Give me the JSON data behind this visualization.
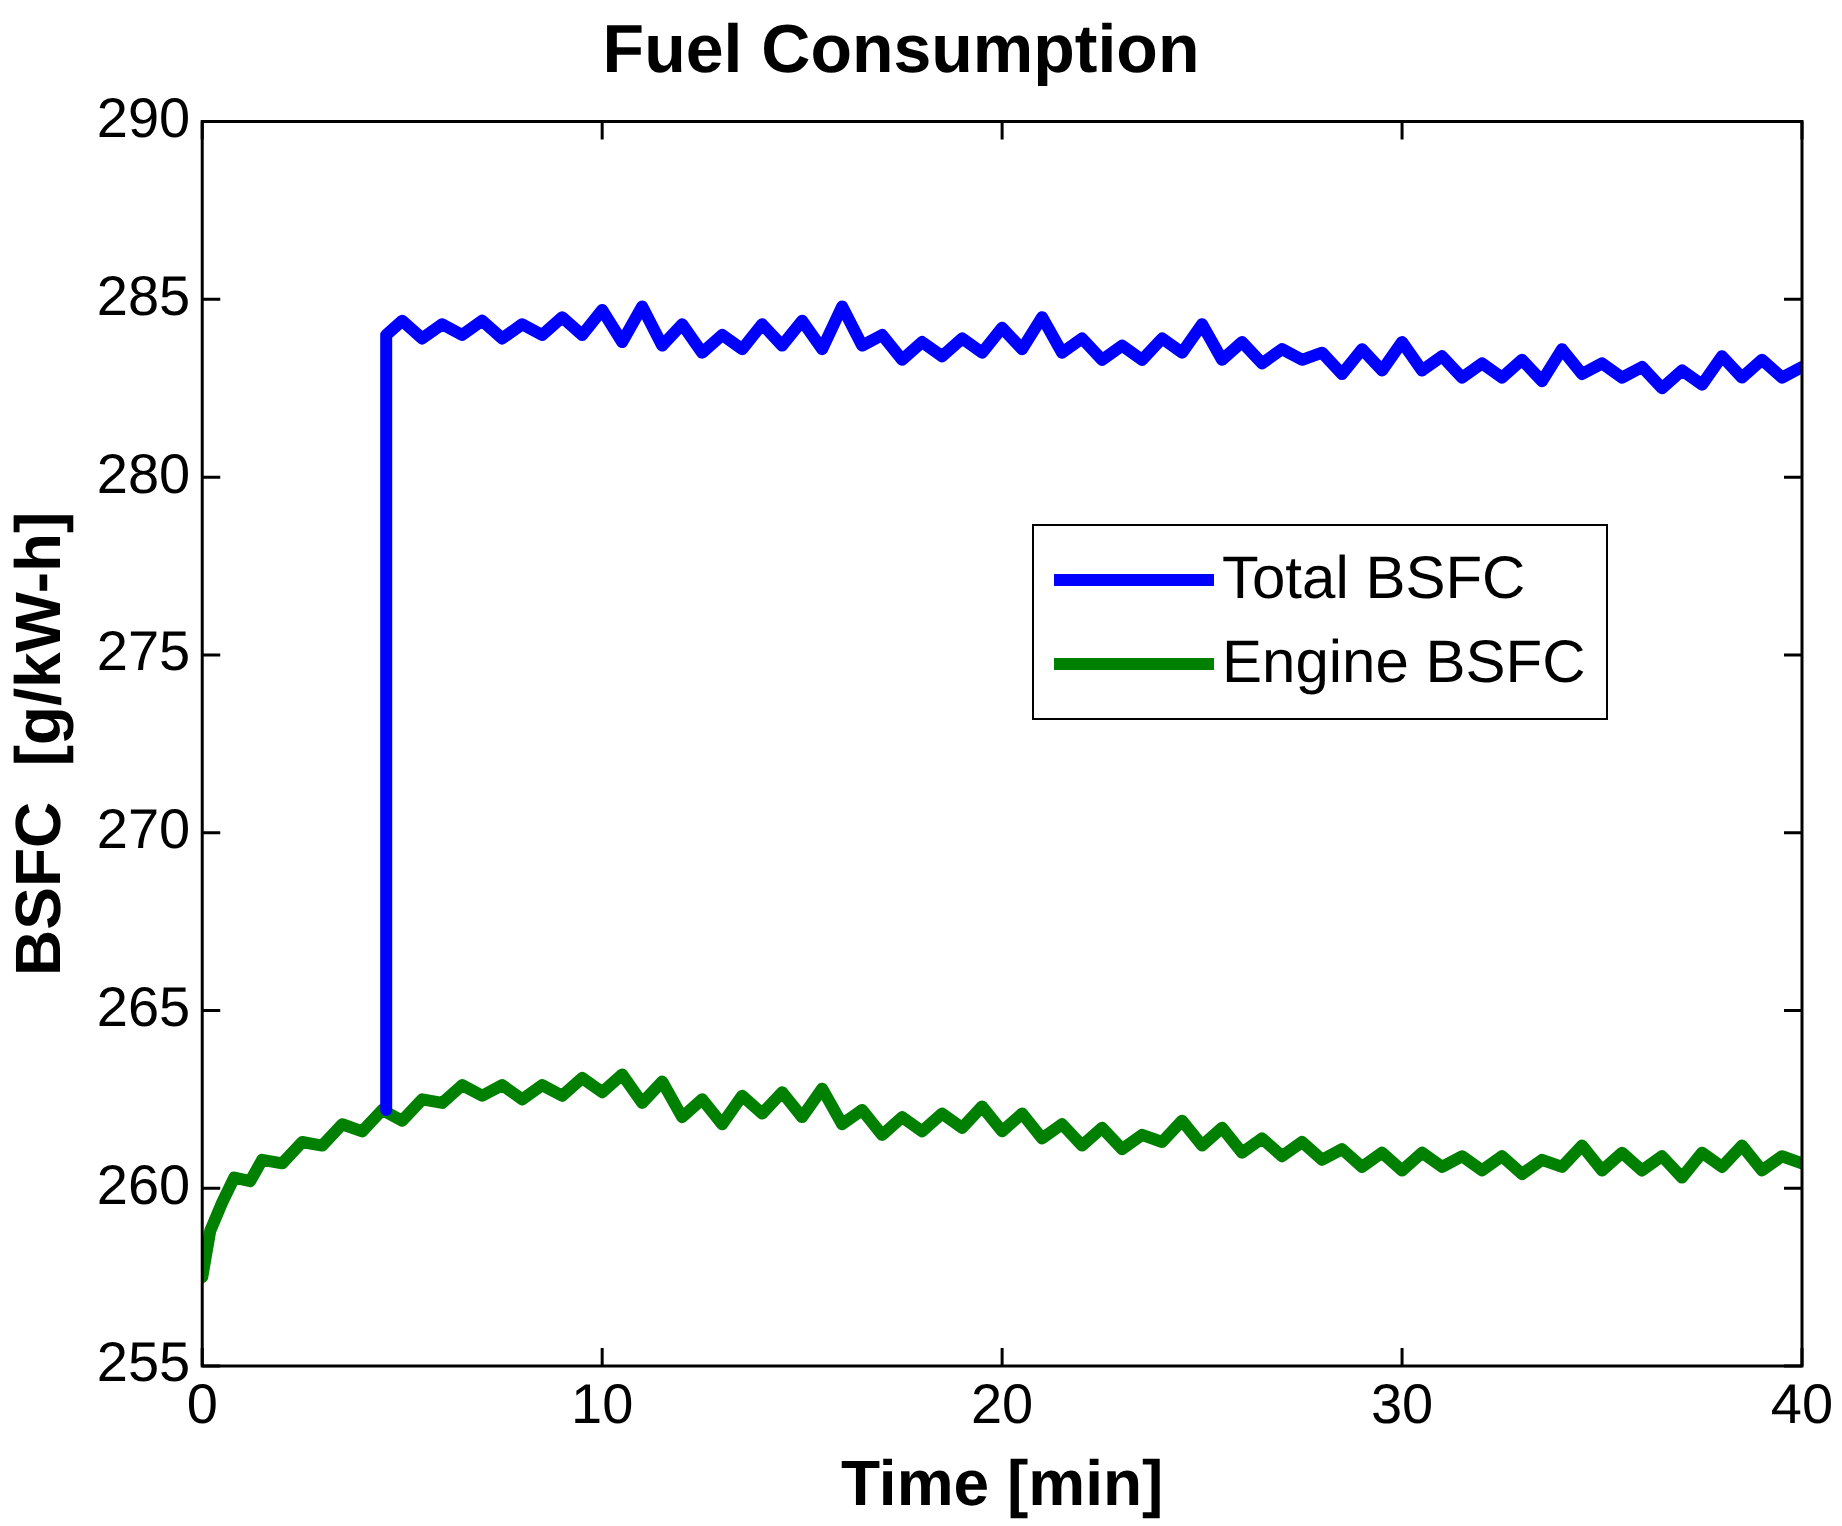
{
  "chart_data": {
    "type": "line",
    "title": "Fuel Consumption",
    "xlabel": "Time [min]",
    "ylabel": "BSFC  [g/kW-h]",
    "xlim": [
      0,
      40
    ],
    "ylim": [
      255,
      290
    ],
    "xticks": [
      0,
      10,
      20,
      30,
      40
    ],
    "yticks": [
      255,
      260,
      265,
      270,
      275,
      280,
      285,
      290
    ],
    "legend": "right",
    "series": [
      {
        "name": "Total BSFC",
        "color": "#0000ff",
        "x": [
          4.6,
          4.6,
          5,
          5.5,
          6,
          6.5,
          7,
          7.5,
          8,
          8.5,
          9,
          9.5,
          10,
          10.5,
          11,
          11.5,
          12,
          12.5,
          13,
          13.5,
          14,
          14.5,
          15,
          15.5,
          16,
          16.5,
          17,
          17.5,
          18,
          18.5,
          19,
          19.5,
          20,
          20.5,
          21,
          21.5,
          22,
          22.5,
          23,
          23.5,
          24,
          24.5,
          25,
          25.5,
          26,
          26.5,
          27,
          27.5,
          28,
          28.5,
          29,
          29.5,
          30,
          30.5,
          31,
          31.5,
          32,
          32.5,
          33,
          33.5,
          34,
          34.5,
          35,
          35.5,
          36,
          36.5,
          37,
          37.5,
          38,
          38.5,
          39,
          39.5,
          40
        ],
        "values": [
          262.2,
          284.0,
          284.4,
          283.9,
          284.3,
          284.0,
          284.4,
          283.9,
          284.3,
          284.0,
          284.5,
          284.0,
          284.7,
          283.8,
          284.8,
          283.7,
          284.3,
          283.5,
          284.0,
          283.6,
          284.3,
          283.7,
          284.4,
          283.6,
          284.8,
          283.7,
          284.0,
          283.3,
          283.8,
          283.4,
          283.9,
          283.5,
          284.2,
          283.6,
          284.5,
          283.5,
          283.9,
          283.3,
          283.7,
          283.3,
          283.9,
          283.5,
          284.3,
          283.3,
          283.8,
          283.2,
          283.6,
          283.3,
          283.5,
          282.9,
          283.6,
          283.0,
          283.8,
          283.0,
          283.4,
          282.8,
          283.2,
          282.8,
          283.3,
          282.7,
          283.6,
          282.9,
          283.2,
          282.8,
          283.1,
          282.5,
          283.0,
          282.6,
          283.4,
          282.8,
          283.3,
          282.8,
          283.1
        ]
      },
      {
        "name": "Engine BSFC",
        "color": "#008000",
        "x": [
          0,
          0.2,
          0.5,
          0.8,
          1.2,
          1.5,
          2,
          2.5,
          3,
          3.5,
          4,
          4.5,
          5,
          5.5,
          6,
          6.5,
          7,
          7.5,
          8,
          8.5,
          9,
          9.5,
          10,
          10.5,
          11,
          11.5,
          12,
          12.5,
          13,
          13.5,
          14,
          14.5,
          15,
          15.5,
          16,
          16.5,
          17,
          17.5,
          18,
          18.5,
          19,
          19.5,
          20,
          20.5,
          21,
          21.5,
          22,
          22.5,
          23,
          23.5,
          24,
          24.5,
          25,
          25.5,
          26,
          26.5,
          27,
          27.5,
          28,
          28.5,
          29,
          29.5,
          30,
          30.5,
          31,
          31.5,
          32,
          32.5,
          33,
          33.5,
          34,
          34.5,
          35,
          35.5,
          36,
          36.5,
          37,
          37.5,
          38,
          38.5,
          39,
          39.5,
          40
        ],
        "values": [
          257.5,
          258.8,
          259.6,
          260.3,
          260.2,
          260.8,
          260.7,
          261.3,
          261.2,
          261.8,
          261.6,
          262.2,
          261.9,
          262.5,
          262.4,
          262.9,
          262.6,
          262.9,
          262.5,
          262.9,
          262.6,
          263.1,
          262.7,
          263.2,
          262.4,
          263.0,
          262.0,
          262.5,
          261.8,
          262.6,
          262.1,
          262.7,
          262.0,
          262.8,
          261.8,
          262.2,
          261.5,
          262.0,
          261.6,
          262.1,
          261.7,
          262.3,
          261.6,
          262.1,
          261.4,
          261.8,
          261.2,
          261.7,
          261.1,
          261.5,
          261.3,
          261.9,
          261.2,
          261.7,
          261.0,
          261.4,
          260.9,
          261.3,
          260.8,
          261.1,
          260.6,
          261.0,
          260.5,
          261.0,
          260.6,
          260.9,
          260.5,
          260.9,
          260.4,
          260.8,
          260.6,
          261.2,
          260.5,
          261.0,
          260.5,
          260.9,
          260.3,
          261.0,
          260.6,
          261.2,
          260.5,
          260.9,
          260.7
        ]
      }
    ]
  }
}
